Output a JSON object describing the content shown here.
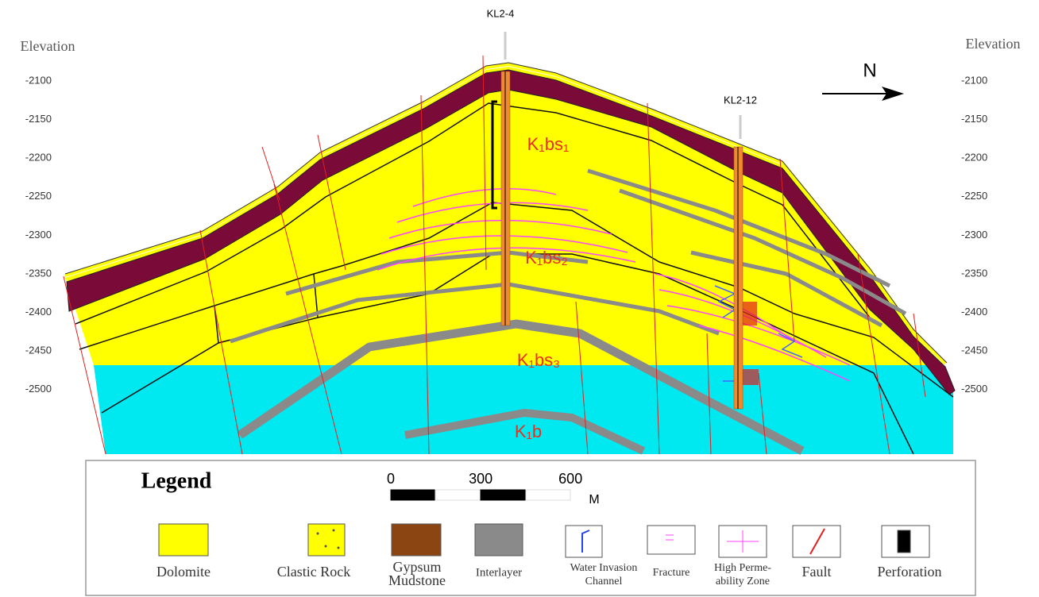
{
  "wells": [
    {
      "label": "KL2-4"
    },
    {
      "label": "KL2-12"
    }
  ],
  "left_axis": {
    "title": "Elevation",
    "ticks": [
      -2100,
      -2150,
      -2200,
      -2250,
      -2300,
      -2350,
      -2400,
      -2450,
      -2500
    ]
  },
  "right_axis": {
    "title": "Elevation",
    "ticks": [
      -2100,
      -2150,
      -2200,
      -2250,
      -2300,
      -2350,
      -2400,
      -2450,
      -2500
    ]
  },
  "north": "N",
  "layers": [
    "K₁bs₁",
    "K₁bs₂",
    "K₁bs₃",
    "K₁b"
  ],
  "legend": {
    "title": "Legend",
    "scale": {
      "ticks": [
        0,
        300,
        600
      ],
      "unit": "M"
    },
    "items": [
      [
        "Dolomite"
      ],
      [
        "Clastic Rock"
      ],
      [
        "Gypsum",
        "Mudstone"
      ],
      [
        "Interlayer"
      ],
      [
        "Water Invasion",
        "Channel"
      ],
      [
        "Fracture"
      ],
      [
        "High Perme-",
        "ability Zone"
      ],
      [
        "Fault"
      ],
      [
        "Perforation"
      ]
    ]
  }
}
